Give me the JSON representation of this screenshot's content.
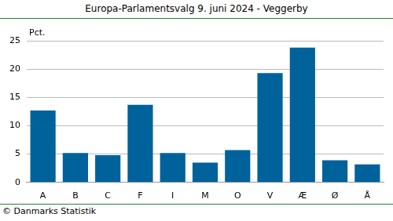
{
  "chart_data": {
    "type": "bar",
    "title": "Europa-Parlamentsvalg 9. juni 2024 - Veggerby",
    "y_label": "Pct.",
    "footer": "© Danmarks Statistik",
    "categories": [
      "A",
      "B",
      "C",
      "F",
      "I",
      "M",
      "O",
      "V",
      "Æ",
      "Ø",
      "Å"
    ],
    "values": [
      12.7,
      5.2,
      4.8,
      13.7,
      5.2,
      3.5,
      5.7,
      19.3,
      23.8,
      3.9,
      3.2
    ],
    "color": "#00629b",
    "ylim": [
      0,
      25
    ],
    "yticks": [
      0,
      5,
      10,
      15,
      20,
      25
    ],
    "grid": true
  }
}
